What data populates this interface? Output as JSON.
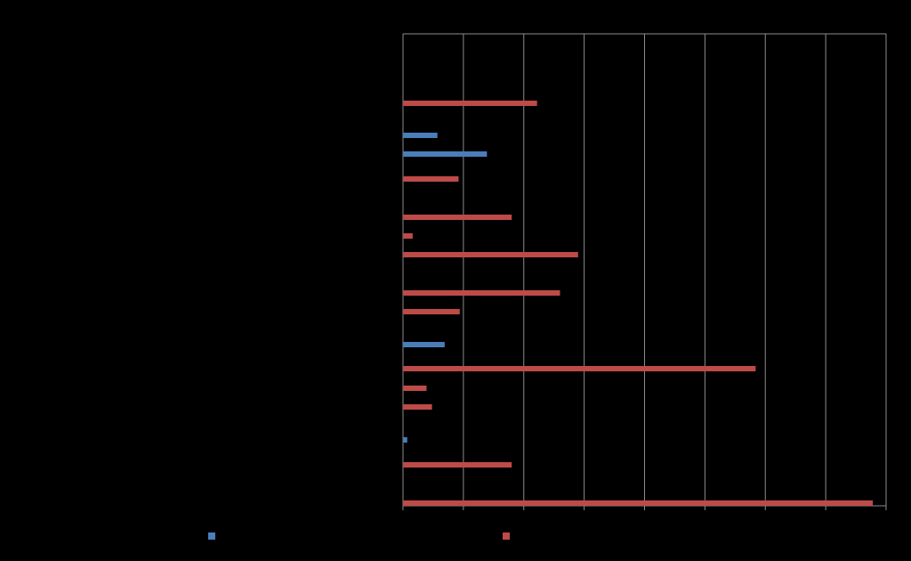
{
  "chart_data": {
    "type": "bar",
    "orientation": "horizontal",
    "title": "",
    "xlabel": "",
    "ylabel": "",
    "xlim": [
      0,
      8
    ],
    "grid": true,
    "legend_position": "bottom",
    "colors": {
      "background": "#000000",
      "gridline": "#8c8c8c",
      "series_blue": "#4a7ebb",
      "series_red": "#be4b48"
    },
    "series": [
      {
        "color": "#4a7ebb"
      },
      {
        "color": "#be4b48"
      }
    ],
    "bars": [
      {
        "series": 1,
        "value": 2.22
      },
      {
        "series": 0,
        "value": 0.57
      },
      {
        "series": 0,
        "value": 1.39
      },
      {
        "series": 1,
        "value": 0.92
      },
      {
        "series": 1,
        "value": 1.8
      },
      {
        "series": 1,
        "value": 0.16
      },
      {
        "series": 1,
        "value": 2.9
      },
      {
        "series": 1,
        "value": 2.6
      },
      {
        "series": 1,
        "value": 0.94
      },
      {
        "series": 0,
        "value": 0.69
      },
      {
        "series": 1,
        "value": 5.84
      },
      {
        "series": 1,
        "value": 0.39
      },
      {
        "series": 1,
        "value": 0.48
      },
      {
        "series": 0,
        "value": 0.07
      },
      {
        "series": 1,
        "value": 1.8
      },
      {
        "series": 1,
        "value": 7.78
      }
    ]
  }
}
